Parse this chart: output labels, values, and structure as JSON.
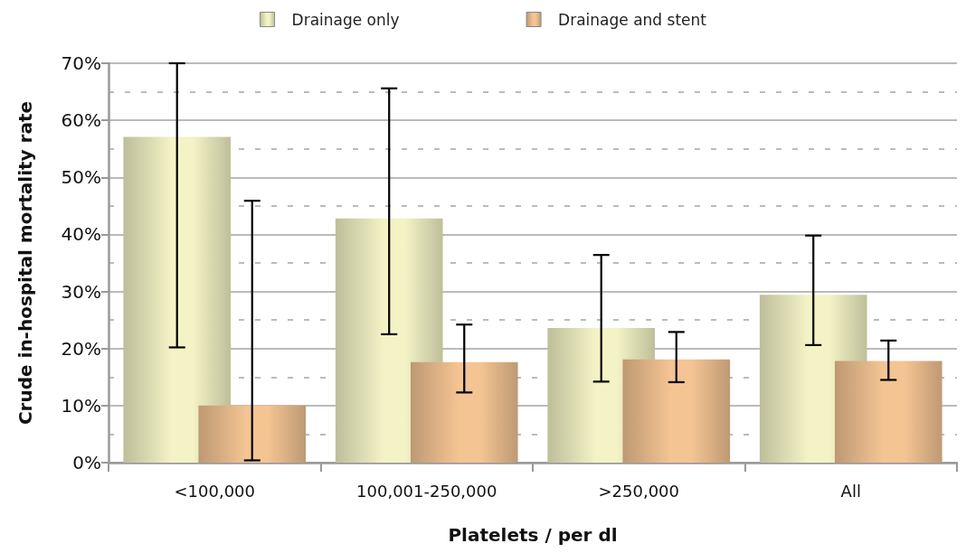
{
  "chart_data": {
    "type": "bar",
    "xlabel": "Platelets / per dl",
    "ylabel": "Crude in-hospital mortality rate",
    "categories": [
      "<100,000",
      "100,001-250,000",
      ">250,000",
      "All"
    ],
    "series": [
      {
        "name": "Drainage only",
        "color": "#f3f3c6",
        "values": [
          57.1,
          42.8,
          23.6,
          29.4
        ],
        "errors": [
          [
            20.2,
            70
          ],
          [
            22.5,
            65.6
          ],
          [
            14.2,
            36.4
          ],
          [
            20.6,
            39.8
          ]
        ]
      },
      {
        "name": "Drainage and stent",
        "color": "#f4c493",
        "values": [
          10.0,
          17.6,
          18.1,
          17.8
        ],
        "errors": [
          [
            0.4,
            45.9
          ],
          [
            12.3,
            24.2
          ],
          [
            14.1,
            22.9
          ],
          [
            14.5,
            21.4
          ]
        ]
      }
    ],
    "ylim": [
      0,
      70
    ],
    "yticks": [
      {
        "value": 0,
        "label": "0%"
      },
      {
        "value": 10,
        "label": "10%"
      },
      {
        "value": 20,
        "label": "20%"
      },
      {
        "value": 30,
        "label": "30%"
      },
      {
        "value": 40,
        "label": "40%"
      },
      {
        "value": 50,
        "label": "50%"
      },
      {
        "value": 60,
        "label": "60%"
      },
      {
        "value": 70,
        "label": "70%"
      }
    ],
    "grid": "y",
    "legend": "top"
  }
}
